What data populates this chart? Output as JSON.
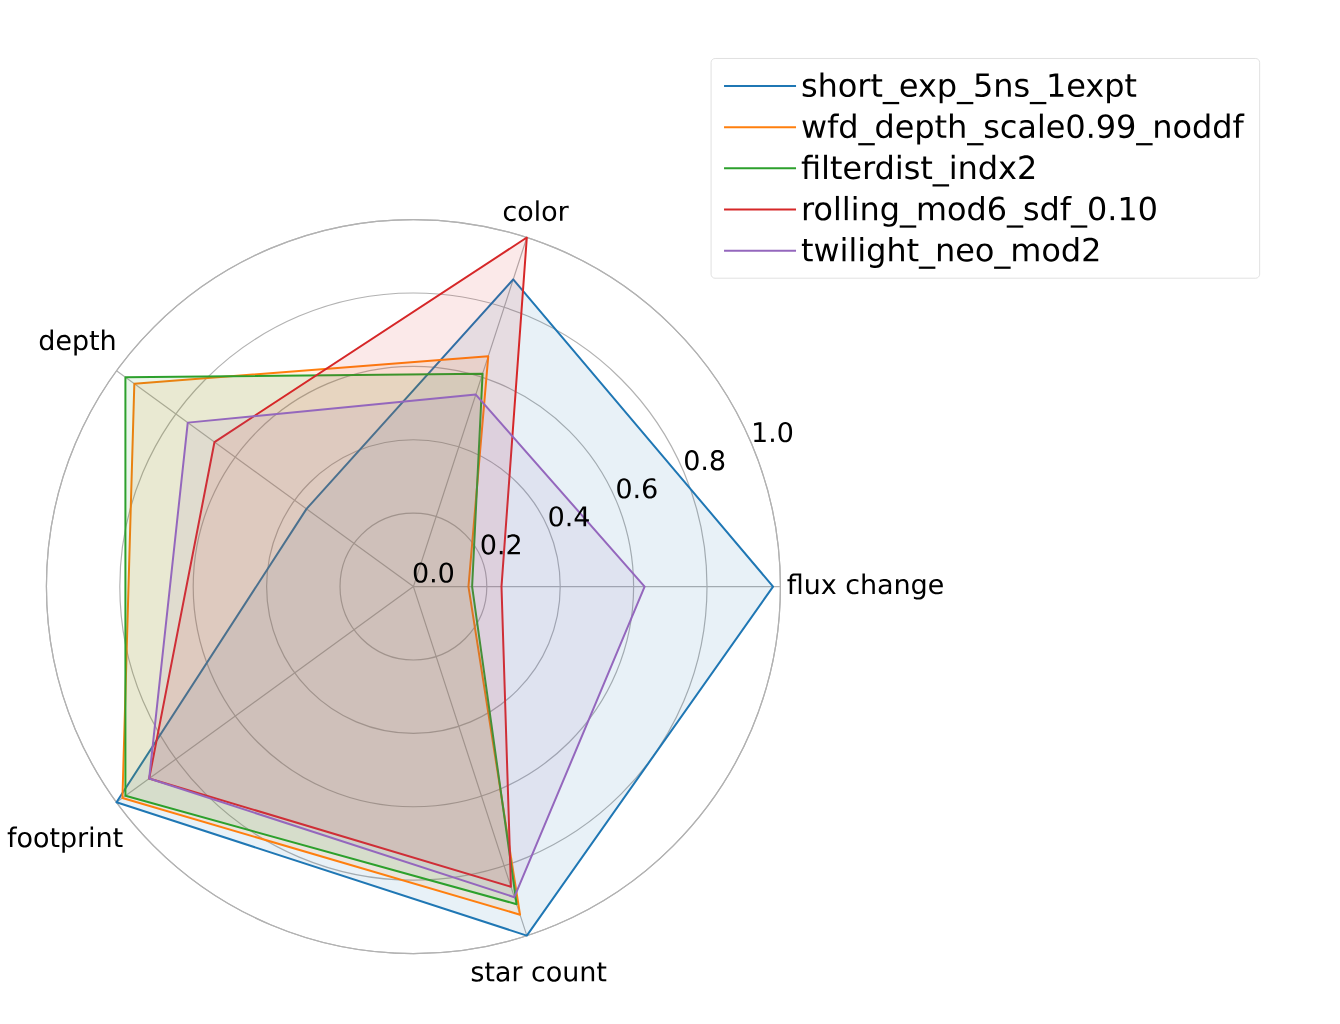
{
  "chart_data": {
    "type": "radar",
    "categories": [
      "color",
      "flux change",
      "star count",
      "footprint",
      "depth"
    ],
    "series": [
      {
        "name": "short_exp_5ns_1expt",
        "color": "#1f77b4",
        "values": [
          0.88,
          0.98,
          1.0,
          1.0,
          0.36
        ]
      },
      {
        "name": "wfd_depth_scale0.99_noddf",
        "color": "#ff7f0e",
        "values": [
          0.66,
          0.15,
          0.94,
          0.98,
          0.94
        ]
      },
      {
        "name": "filterdist_indx2",
        "color": "#2ca02c",
        "values": [
          0.61,
          0.16,
          0.91,
          0.97,
          0.97
        ]
      },
      {
        "name": "rolling_mod6_sdf_0.10",
        "color": "#d62728",
        "values": [
          1.0,
          0.24,
          0.86,
          0.89,
          0.67
        ]
      },
      {
        "name": "twilight_neo_mod2",
        "color": "#9467bd",
        "values": [
          0.55,
          0.63,
          0.89,
          0.89,
          0.76
        ]
      }
    ],
    "ylim": [
      0,
      1
    ],
    "yticks": [
      {
        "value": 0,
        "label": "0.0"
      },
      0.2,
      0.4,
      0.6,
      0.8,
      {
        "value": 1,
        "label": "1.0"
      }
    ],
    "grid": true,
    "legend": "top right",
    "marker": "none",
    "line_style": "solid"
  }
}
